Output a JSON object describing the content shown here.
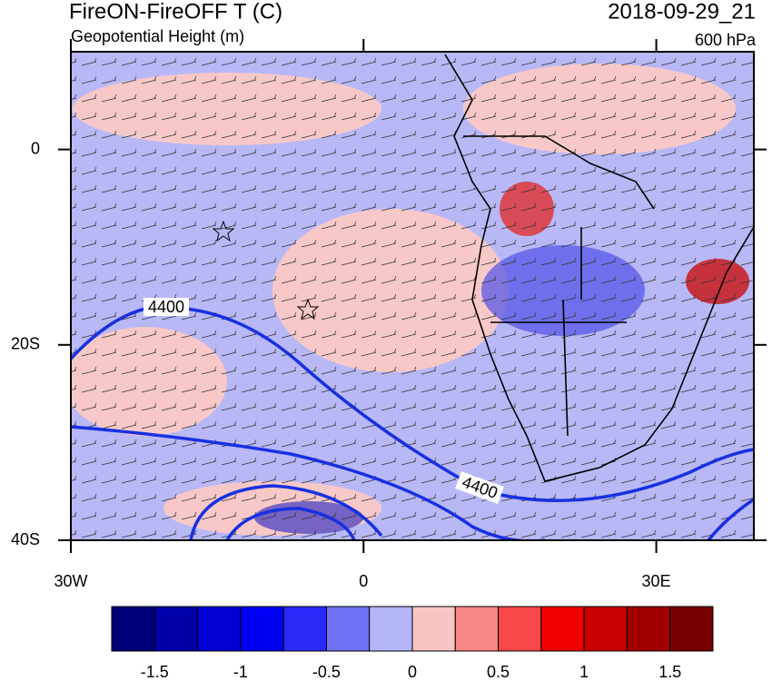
{
  "header": {
    "title": "FireON-FireOFF T (C)",
    "subtitle": "Geopotential Height (m)",
    "time": "2018-09-29_21",
    "level": "600 hPa"
  },
  "map": {
    "lon_range": [
      -30,
      40
    ],
    "lat_range": [
      -40,
      10
    ],
    "xticks": [
      {
        "value": -30,
        "label": "30W"
      },
      0,
      {
        "value": 30,
        "label": "30E"
      }
    ],
    "yticks": [
      0,
      {
        "value": -20,
        "label": "20S"
      },
      {
        "value": -40,
        "label": "40S"
      }
    ],
    "contour_labels": [
      "4400",
      "4400"
    ]
  },
  "colorbar": {
    "range": [
      -1.75,
      1.75
    ],
    "colors": [
      "#00007a",
      "#0000a8",
      "#0000d0",
      "#0000f5",
      "#2a2af8",
      "#7070f5",
      "#b4b4f8",
      "#f8c4c4",
      "#f88686",
      "#f84848",
      "#f00000",
      "#c80000",
      "#a00000",
      "#780000"
    ],
    "ticks": [
      -1.5,
      -1,
      -0.5,
      0,
      0.5,
      1,
      1.5
    ]
  }
}
